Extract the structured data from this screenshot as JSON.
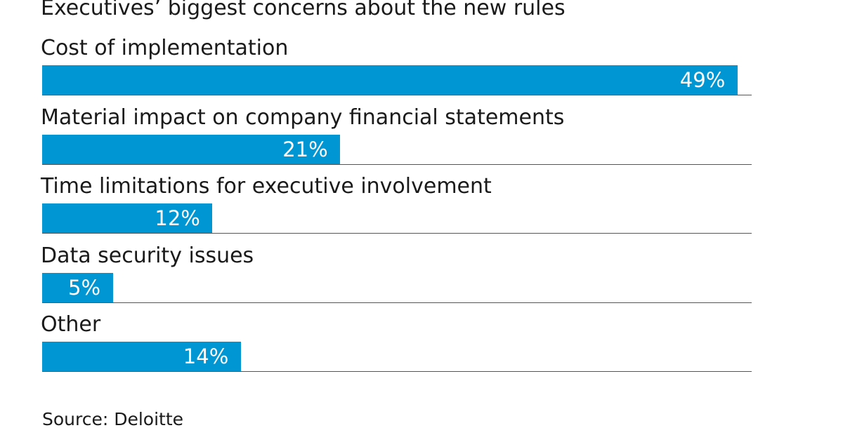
{
  "chart_data": {
    "type": "bar",
    "orientation": "horizontal",
    "title": "Executives’ biggest concerns about the new rules",
    "categories": [
      "Cost of implementation",
      "Material impact on company financial statements",
      "Time limitations for executive involvement",
      "Data security issues",
      "Other"
    ],
    "values": [
      49,
      21,
      12,
      5,
      14
    ],
    "value_labels": [
      "49%",
      "21%",
      "12%",
      "5%",
      "14%"
    ],
    "unit": "%",
    "bar_color": "#0095d3",
    "xlim": [
      0,
      50
    ],
    "grid": false
  },
  "source": "Source: Deloitte"
}
